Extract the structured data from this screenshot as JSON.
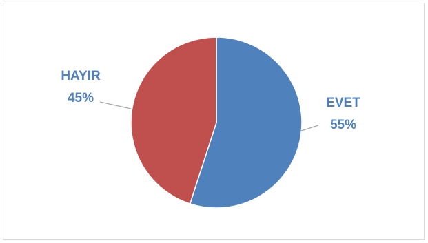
{
  "chart_data": {
    "type": "pie",
    "categories": [
      "EVET",
      "HAYIR"
    ],
    "values": [
      55,
      45
    ],
    "value_labels": [
      "55%",
      "45%"
    ],
    "colors": [
      "#4f81bd",
      "#c0504d"
    ],
    "label_color": "#4f81bd",
    "leader_line_color": "#a6a6a6",
    "border_color": "#d9d9d9",
    "start_angle_deg": 0,
    "direction": "clockwise",
    "legend": "none",
    "data_labels": "outside-with-leader-lines"
  }
}
